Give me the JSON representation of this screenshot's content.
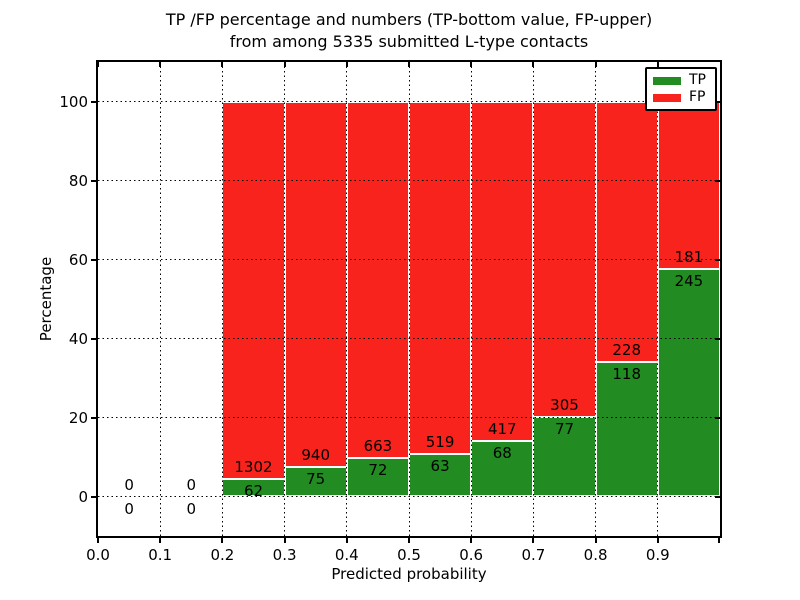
{
  "header": {
    "title_line1": "TP /FP percentage and numbers (TP-bottom value, FP-upper)",
    "title_line2": "from among 5335 submitted L-type contacts"
  },
  "axes": {
    "xlabel": "Predicted probability",
    "ylabel": "Percentage",
    "xtick_labels": [
      "0.0",
      "0.1",
      "0.2",
      "0.3",
      "0.4",
      "0.5",
      "0.6",
      "0.7",
      "0.8",
      "0.9"
    ],
    "xtick_values": [
      0.0,
      0.1,
      0.2,
      0.3,
      0.4,
      0.5,
      0.6,
      0.7,
      0.8,
      0.9
    ],
    "ytick_labels": [
      "0",
      "20",
      "40",
      "60",
      "80",
      "100"
    ],
    "ytick_values": [
      0,
      20,
      40,
      60,
      80,
      100
    ]
  },
  "legend": {
    "items": [
      {
        "label": "TP",
        "color": "#228b22"
      },
      {
        "label": "FP",
        "color": "#f8231c"
      }
    ]
  },
  "chart_data": {
    "type": "bar",
    "stacked": true,
    "normalized_to": 100,
    "title": "TP /FP percentage and numbers (TP-bottom value, FP-upper)\nfrom among 5335 submitted L-type contacts",
    "xlabel": "Predicted probability",
    "ylabel": "Percentage",
    "xlim": [
      0.0,
      1.0
    ],
    "ylim": [
      -10,
      110
    ],
    "grid": "dotted black, drawn over bars",
    "legend_position": "upper right",
    "bin_width": 0.1,
    "bin_starts": [
      0.0,
      0.1,
      0.2,
      0.3,
      0.4,
      0.5,
      0.6,
      0.7,
      0.8,
      0.9
    ],
    "series": [
      {
        "name": "TP",
        "color": "#228b22",
        "counts": [
          0,
          0,
          62,
          75,
          72,
          63,
          68,
          77,
          118,
          245
        ]
      },
      {
        "name": "FP",
        "color": "#f8231c",
        "counts": [
          0,
          0,
          1302,
          940,
          663,
          519,
          417,
          305,
          228,
          181
        ]
      }
    ],
    "tp_percent": [
      0,
      0,
      4.55,
      7.39,
      9.8,
      10.82,
      14.02,
      20.16,
      34.1,
      57.51
    ],
    "fp_percent": [
      0,
      0,
      95.45,
      92.61,
      90.2,
      89.18,
      85.98,
      79.84,
      65.9,
      42.49
    ],
    "total_contacts": 5335
  }
}
